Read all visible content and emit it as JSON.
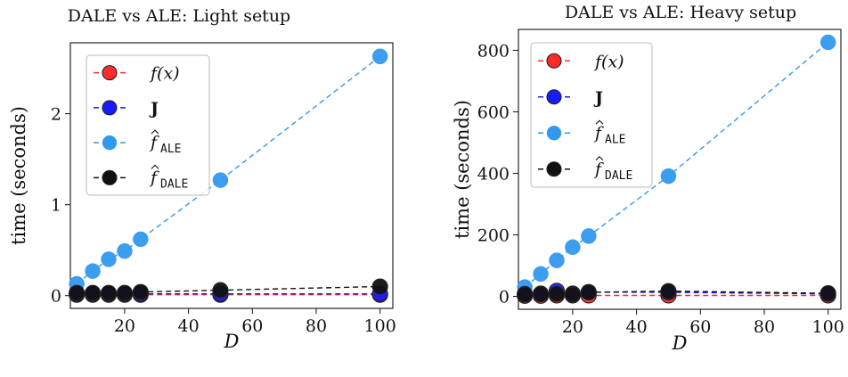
{
  "chart_data": [
    {
      "type": "line",
      "title": "DALE vs ALE: Light setup",
      "xlabel": "D",
      "ylabel": "time (seconds)",
      "xlim": [
        3,
        104
      ],
      "ylim": [
        -0.14,
        2.78
      ],
      "xticks": [
        20,
        40,
        60,
        80,
        100
      ],
      "yticks": [
        0,
        1,
        2
      ],
      "grid": false,
      "legend_position": "top-left",
      "x": [
        5,
        10,
        15,
        20,
        25,
        50,
        100
      ],
      "series": [
        {
          "name": "f(x)",
          "color": "#ff2a2a",
          "values": [
            0.01,
            0.01,
            0.01,
            0.01,
            0.01,
            0.01,
            0.01
          ]
        },
        {
          "name": "J",
          "color": "#1a1aff",
          "values": [
            0.02,
            0.02,
            0.02,
            0.02,
            0.02,
            0.02,
            0.02
          ]
        },
        {
          "name": "ALE",
          "color": "#3399ee",
          "values": [
            0.13,
            0.27,
            0.4,
            0.49,
            0.62,
            1.27,
            2.63
          ]
        },
        {
          "name": "DALE",
          "color": "#111111",
          "values": [
            0.03,
            0.03,
            0.03,
            0.03,
            0.04,
            0.06,
            0.1
          ]
        }
      ]
    },
    {
      "type": "line",
      "title": "DALE vs ALE: Heavy setup",
      "xlabel": "D",
      "ylabel": "time (seconds)",
      "xlim": [
        3,
        104
      ],
      "ylim": [
        -42,
        868
      ],
      "xticks": [
        20,
        40,
        60,
        80,
        100
      ],
      "yticks": [
        0,
        200,
        400,
        600,
        800
      ],
      "grid": false,
      "legend_position": "top-left",
      "x": [
        5,
        10,
        15,
        20,
        25,
        50,
        100
      ],
      "series": [
        {
          "name": "f(x)",
          "color": "#ff2a2a",
          "values": [
            2,
            2,
            3,
            3,
            3,
            3,
            3
          ]
        },
        {
          "name": "J",
          "color": "#1a1aff",
          "values": [
            8,
            9,
            18,
            9,
            14,
            13,
            8
          ]
        },
        {
          "name": "ALE",
          "color": "#3399ee",
          "values": [
            30,
            73,
            117,
            160,
            196,
            391,
            826
          ]
        },
        {
          "name": "DALE",
          "color": "#111111",
          "values": [
            6,
            7,
            8,
            6,
            13,
            17,
            10
          ]
        }
      ]
    }
  ]
}
